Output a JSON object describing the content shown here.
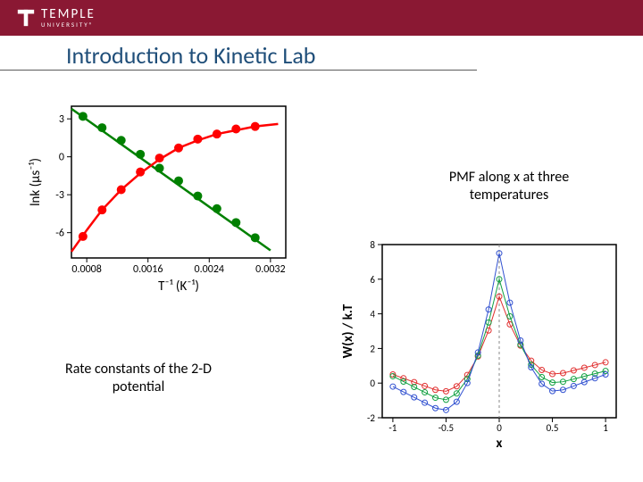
{
  "header": {
    "brand_main": "TEMPLE",
    "brand_sub": "UNIVERSITY®",
    "bar_color": "#8a1833",
    "text_color": "#ffffff"
  },
  "title": {
    "text": "Introduction to Kinetic Lab",
    "color": "#1f4e79",
    "fontsize": 26
  },
  "caption_left": "Rate constants of the 2-D potential",
  "caption_right": "PMF along x at three temperatures",
  "chart_rate": {
    "type": "scatter+line",
    "xlabel": "T⁻¹ (K⁻¹)",
    "ylabel": "lnk (µs⁻¹)",
    "xlim": [
      0.0006,
      0.0034
    ],
    "ylim": [
      -8,
      4
    ],
    "xticks": [
      0.0008,
      0.0016,
      0.0024,
      0.0032
    ],
    "yticks": [
      -6,
      -3,
      0,
      3
    ],
    "frame_color": "#000000",
    "label_fontsize": 15,
    "tick_fontsize": 12,
    "marker_radius": 5,
    "line_width": 2.5,
    "series": [
      {
        "name": "green",
        "color": "#008000",
        "points_x": [
          0.00075,
          0.001,
          0.00125,
          0.0015,
          0.00175,
          0.002,
          0.00225,
          0.0025,
          0.00275,
          0.003
        ],
        "points_y": [
          3.2,
          2.3,
          1.3,
          0.2,
          -0.9,
          -1.9,
          -3.1,
          -4.1,
          -5.2,
          -6.4
        ],
        "line_x": [
          0.0006,
          0.0032
        ],
        "line_y": [
          3.8,
          -7.4
        ]
      },
      {
        "name": "red",
        "color": "#ff0000",
        "points_x": [
          0.00075,
          0.001,
          0.00125,
          0.0015,
          0.00175,
          0.002,
          0.00225,
          0.0025,
          0.00275,
          0.003
        ],
        "points_y": [
          -6.3,
          -4.2,
          -2.6,
          -1.2,
          -0.1,
          0.7,
          1.4,
          1.8,
          2.2,
          2.4
        ],
        "curve": [
          [
            0.0006,
            -7.5
          ],
          [
            0.0008,
            -5.8
          ],
          [
            0.001,
            -4.2
          ],
          [
            0.00125,
            -2.6
          ],
          [
            0.0015,
            -1.3
          ],
          [
            0.00175,
            -0.2
          ],
          [
            0.002,
            0.7
          ],
          [
            0.00225,
            1.3
          ],
          [
            0.0025,
            1.8
          ],
          [
            0.00275,
            2.1
          ],
          [
            0.003,
            2.4
          ],
          [
            0.0033,
            2.6
          ]
        ]
      }
    ]
  },
  "chart_pmf": {
    "type": "line+markers",
    "xlabel": "x",
    "ylabel": "W(x) / k.T",
    "xlim": [
      -1.1,
      1.1
    ],
    "ylim": [
      -2,
      8
    ],
    "xticks": [
      -1,
      -0.5,
      0,
      0.5,
      1
    ],
    "yticks": [
      -2,
      0,
      2,
      4,
      6,
      8
    ],
    "frame_color": "#000000",
    "dashed_line_color": "#888888",
    "label_fontsize": 15,
    "tick_fontsize": 11,
    "marker_radius": 3,
    "line_width": 1,
    "x_samples": [
      -1.0,
      -0.9,
      -0.8,
      -0.7,
      -0.6,
      -0.5,
      -0.4,
      -0.3,
      -0.2,
      -0.1,
      0.0,
      0.1,
      0.2,
      0.3,
      0.4,
      0.5,
      0.6,
      0.7,
      0.8,
      0.9,
      1.0
    ],
    "series": [
      {
        "name": "red",
        "color": "#e03030",
        "left_depth": -0.5,
        "right_depth": 0.5,
        "peak": 5.0
      },
      {
        "name": "green",
        "color": "#10a040",
        "left_depth": -1.0,
        "right_depth": 0.0,
        "peak": 6.0
      },
      {
        "name": "blue",
        "color": "#3050d0",
        "left_depth": -1.6,
        "right_depth": -0.5,
        "peak": 7.5
      }
    ]
  }
}
